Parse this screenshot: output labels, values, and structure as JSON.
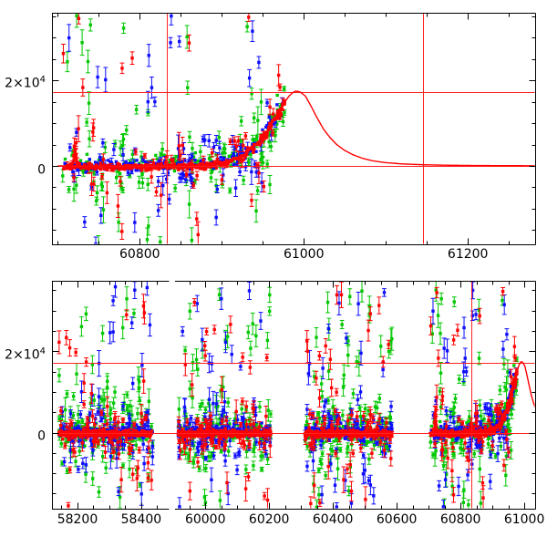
{
  "colors": {
    "background": "#ffffff",
    "axis": "#000000",
    "crosshair": "#ff2222",
    "model_curve": "#ff0000",
    "series_green": "#00c800",
    "series_blue": "#0d0dff",
    "series_red": "#ff0000"
  },
  "chart_data": {
    "type": "scatter",
    "description": "Two-panel photometric light curve: flux versus MJD with three bands (green, blue, red), error bars, red crosshair guide lines and a red transient model curve.",
    "panels": [
      {
        "id": "top",
        "x_range": [
          60693,
          61282
        ],
        "y_range": [
          -18300,
          35750
        ],
        "x_minor_step": 50,
        "x_major_step": 200,
        "y_minor_step": 5000,
        "x_ticks": [
          {
            "t": 60800,
            "label": "60800"
          },
          {
            "t": 61000,
            "label": "61000"
          },
          {
            "t": 61200,
            "label": "61200"
          }
        ],
        "y_ticks": [
          {
            "v": 20000,
            "mantissa": "2×10",
            "sup": "4"
          },
          {
            "v": 0,
            "mantissa": "0",
            "sup": ""
          }
        ],
        "crosshair_v": [
          60833,
          61145
        ],
        "crosshair_h": [
          0,
          17200
        ],
        "seasons_shown": [
          "s4"
        ]
      },
      {
        "id": "bottom",
        "x_segments": [
          [
            58120,
            58486
          ],
          [
            59905,
            61034
          ]
        ],
        "y_range": [
          -18700,
          37330
        ],
        "x_minor_step": 50,
        "x_major_step": 200,
        "y_minor_step": 5000,
        "x_ticks": [
          {
            "t": 58200,
            "label": "58200"
          },
          {
            "t": 58400,
            "label": "58400"
          },
          {
            "t": 60000,
            "label": "60000"
          },
          {
            "t": 60200,
            "label": "60200"
          },
          {
            "t": 60400,
            "label": "60400"
          },
          {
            "t": 60600,
            "label": "60600"
          },
          {
            "t": 60800,
            "label": "60800"
          },
          {
            "t": 61000,
            "label": "61000"
          }
        ],
        "y_ticks": [
          {
            "v": 20000,
            "mantissa": "2×10",
            "sup": "4"
          },
          {
            "v": 0,
            "mantissa": "0",
            "sup": ""
          }
        ],
        "crosshair_v": [
          60833
        ],
        "crosshair_h": [
          0,
          17200
        ],
        "seasons_shown": [
          "s1",
          "s2",
          "s3",
          "s4"
        ]
      }
    ],
    "model_curve": [
      [
        60700,
        10
      ],
      [
        60780,
        25
      ],
      [
        60840,
        70
      ],
      [
        60862,
        140
      ],
      [
        60878,
        280
      ],
      [
        60893,
        550
      ],
      [
        60906,
        1000
      ],
      [
        60918,
        1750
      ],
      [
        60929,
        2900
      ],
      [
        60940,
        4600
      ],
      [
        60950,
        6800
      ],
      [
        60959,
        9300
      ],
      [
        60967,
        11900
      ],
      [
        60975,
        14400
      ],
      [
        60982,
        16300
      ],
      [
        60987,
        17200
      ],
      [
        60991,
        17500
      ],
      [
        60996,
        17200
      ],
      [
        61002,
        16300
      ],
      [
        61009,
        13900
      ],
      [
        61016,
        11300
      ],
      [
        61024,
        8600
      ],
      [
        61032,
        6600
      ],
      [
        61040,
        5000
      ],
      [
        61050,
        3600
      ],
      [
        61060,
        2600
      ],
      [
        61072,
        1750
      ],
      [
        61085,
        1150
      ],
      [
        61100,
        760
      ],
      [
        61120,
        470
      ],
      [
        61145,
        280
      ],
      [
        61175,
        160
      ],
      [
        61210,
        90
      ],
      [
        61282,
        40
      ]
    ],
    "scatter_model": {
      "seed": 20240917,
      "seasons": [
        {
          "id": "s1",
          "t_range": [
            58142,
            58436
          ],
          "follows_model": false
        },
        {
          "id": "s2",
          "t_range": [
            59915,
            60205
          ],
          "follows_model": false
        },
        {
          "id": "s3",
          "t_range": [
            60312,
            60585
          ],
          "follows_model": false
        },
        {
          "id": "s4",
          "t_range": [
            60706,
            60977
          ],
          "follows_model": true
        }
      ],
      "series": [
        {
          "name": "green",
          "color_key": "series_green",
          "offset": 100,
          "core_n": 120,
          "core_sigma": 1100,
          "mid_n": 85,
          "mid_sigma": 4200,
          "out_n": 34,
          "out_pos_frac": 0.68
        },
        {
          "name": "blue",
          "color_key": "series_blue",
          "offset": 150,
          "core_n": 170,
          "core_sigma": 700,
          "mid_n": 65,
          "mid_sigma": 3200,
          "out_n": 26,
          "out_pos_frac": 0.55
        },
        {
          "name": "red",
          "color_key": "series_red",
          "offset": -250,
          "core_n": 330,
          "core_sigma": 380,
          "mid_n": 55,
          "mid_sigma": 2600,
          "out_n": 30,
          "out_pos_frac": 0.5
        }
      ],
      "out_pos_range": [
        4000,
        36500
      ],
      "out_neg_range": [
        -18600,
        -2500
      ],
      "err_core": [
        160,
        90
      ],
      "err_mid": [
        500,
        1000
      ],
      "err_out": [
        800,
        2400
      ]
    }
  }
}
